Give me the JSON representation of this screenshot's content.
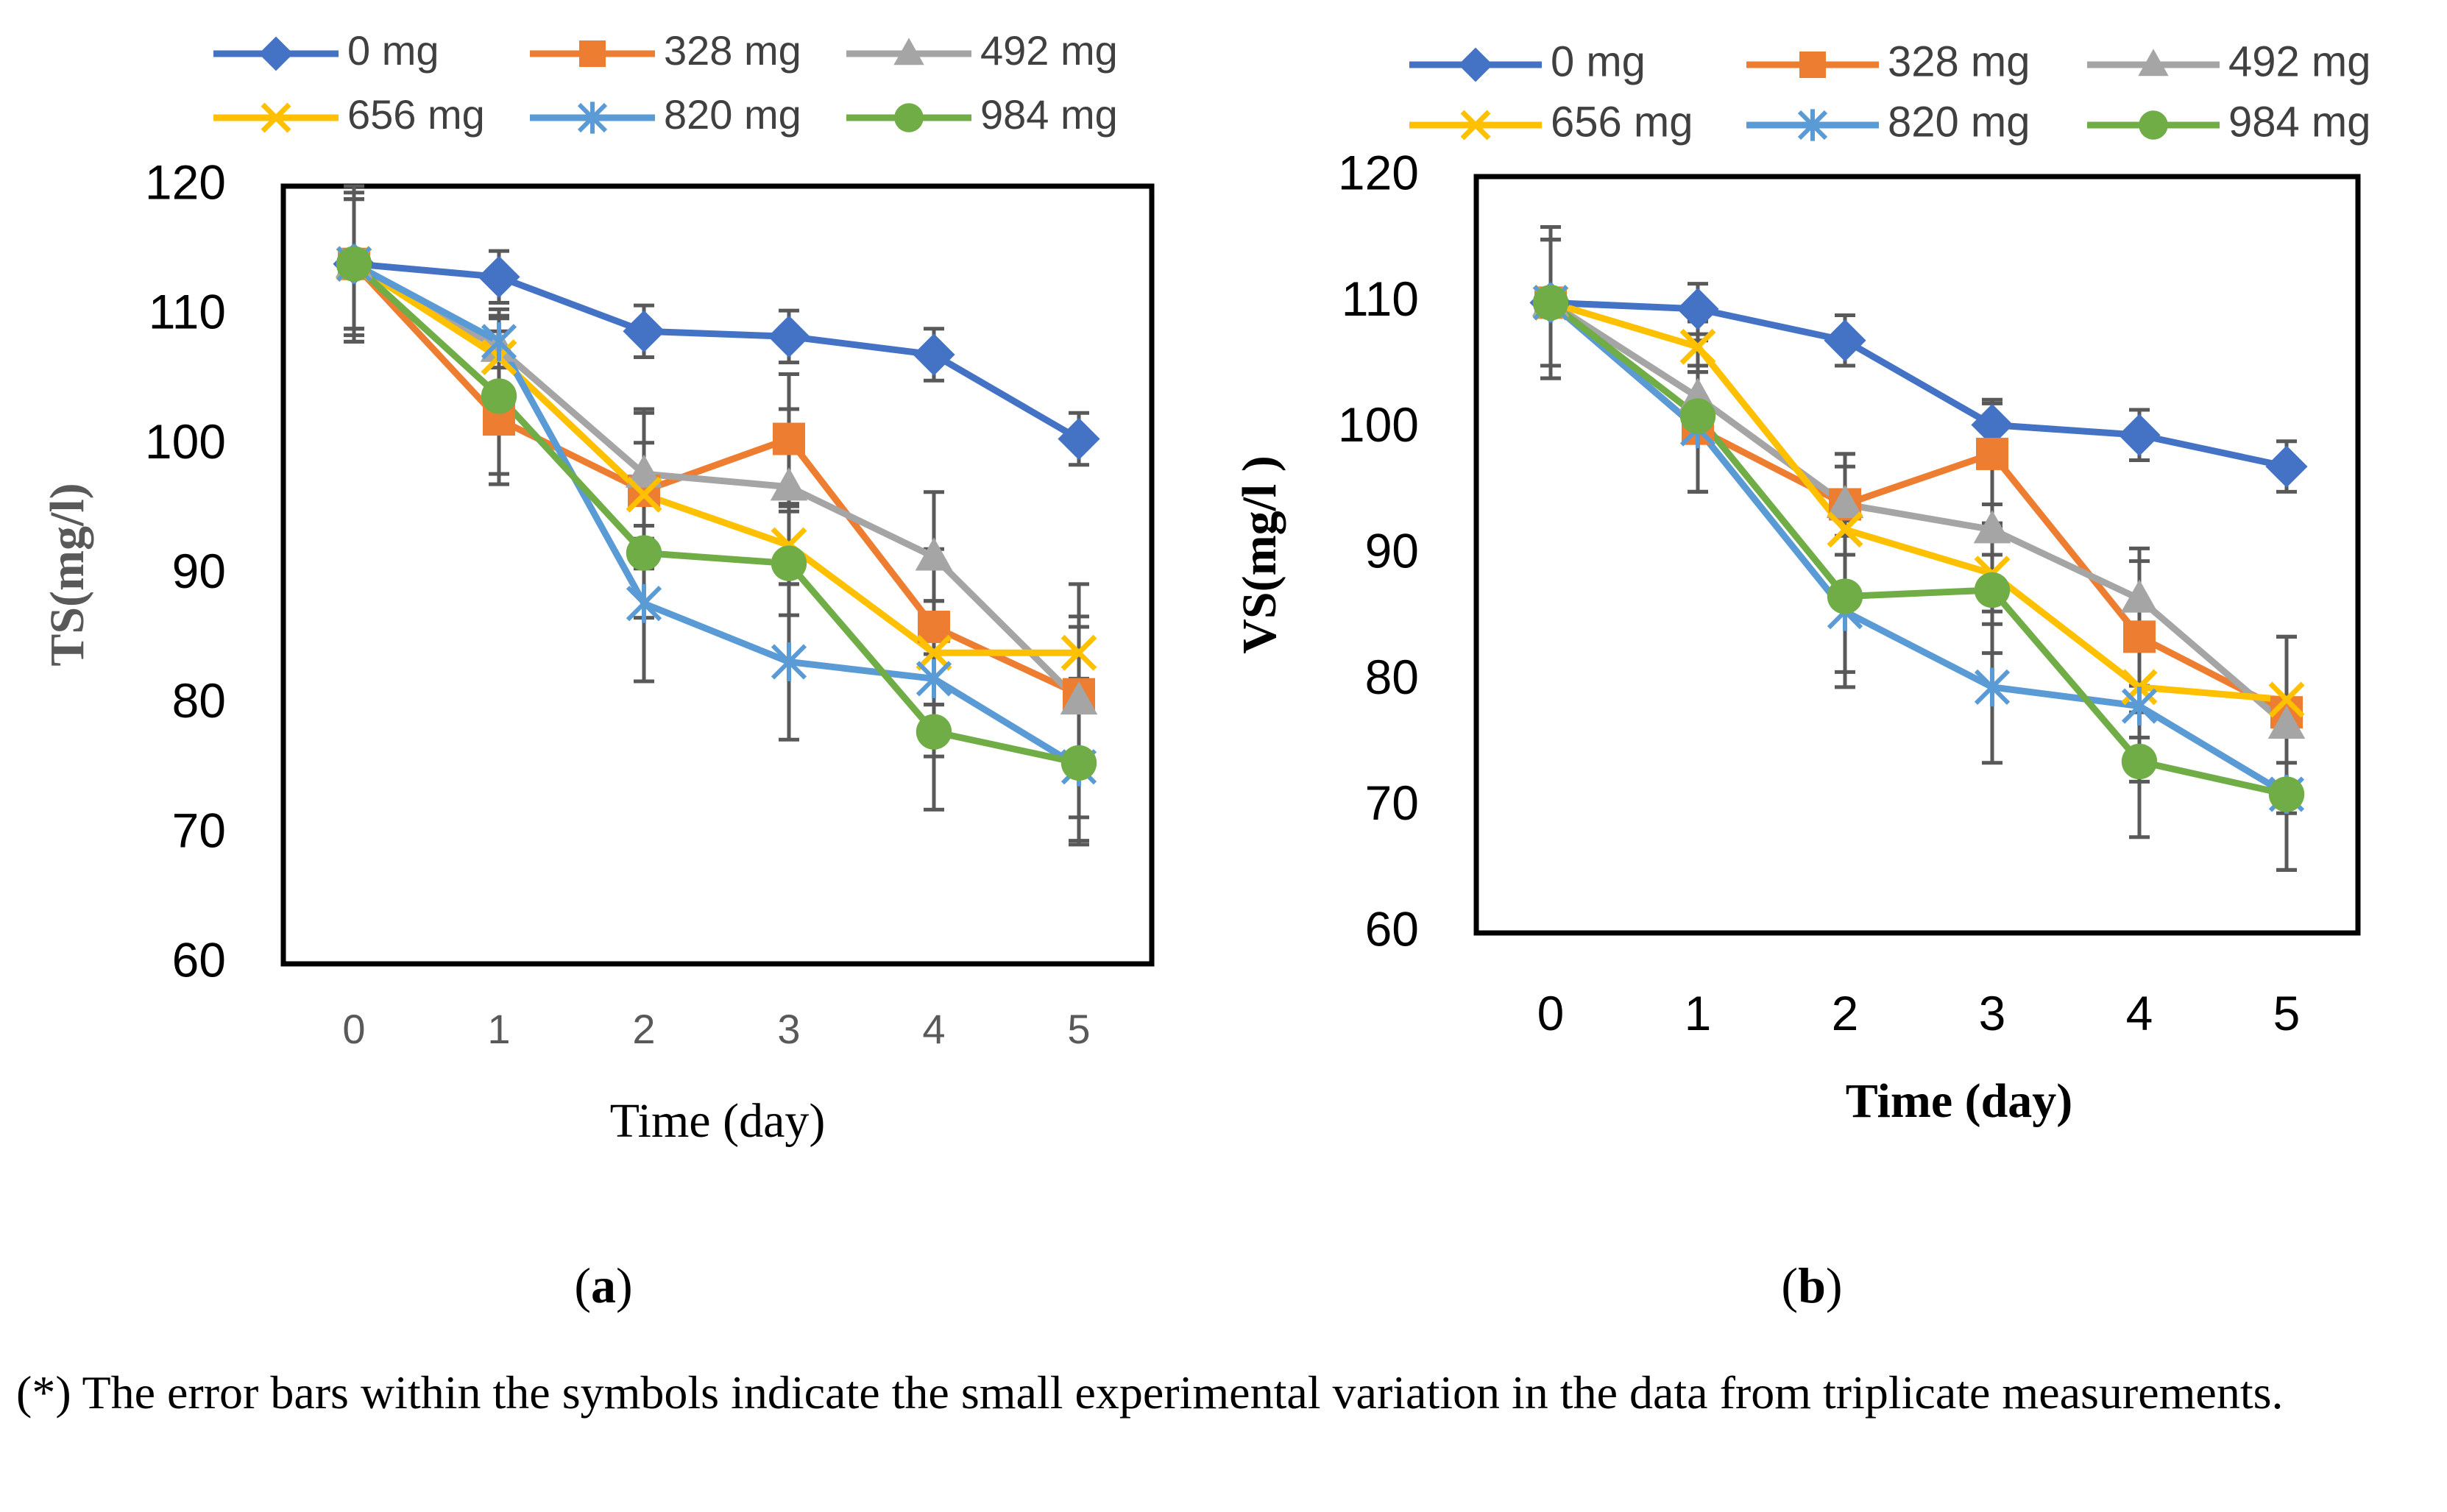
{
  "colors": {
    "0 mg": "#4472C4",
    "328 mg": "#ED7D31",
    "492 mg": "#A5A5A5",
    "656 mg": "#FFC000",
    "820 mg": "#5B9BD5",
    "984 mg": "#70AD47",
    "error_bar": "#595959",
    "frame": "#000000"
  },
  "chart_data": [
    {
      "id": "a",
      "type": "line",
      "caption": "a",
      "title": "",
      "xlabel": "Time (day)",
      "ylabel": "TS(mg/l)",
      "x": [
        0,
        1,
        2,
        3,
        4,
        5
      ],
      "xticks": [
        "0",
        "1",
        "2",
        "3",
        "4",
        "5"
      ],
      "ylim": [
        60,
        120
      ],
      "yticks": [
        "60",
        "70",
        "80",
        "90",
        "100",
        "110",
        "120"
      ],
      "grid": false,
      "legend": "top",
      "series": [
        {
          "name": "0 mg",
          "marker": "diamond",
          "values": [
            114,
            113,
            108.8,
            108.4,
            107,
            100.5
          ],
          "errors": [
            5.5,
            2,
            2,
            2,
            2,
            2
          ]
        },
        {
          "name": "328 mg",
          "marker": "square",
          "values": [
            114,
            102,
            96.5,
            100.5,
            86,
            80.8
          ],
          "errors": [
            6,
            5,
            6,
            5,
            6,
            6
          ]
        },
        {
          "name": "492 mg",
          "marker": "triangle",
          "values": [
            114,
            107.5,
            97.8,
            96.8,
            91.4,
            80.3
          ],
          "errors": [
            6,
            3,
            5,
            6,
            5,
            9
          ]
        },
        {
          "name": "656 mg",
          "marker": "x",
          "values": [
            114,
            106.8,
            96.2,
            92.3,
            84,
            84
          ],
          "errors": [
            5,
            2,
            4,
            3,
            4,
            2
          ]
        },
        {
          "name": "820 mg",
          "marker": "star",
          "values": [
            114,
            108,
            87.8,
            83.3,
            82,
            75.2
          ],
          "errors": [
            5,
            2,
            6,
            6,
            6,
            6
          ]
        },
        {
          "name": "984 mg",
          "marker": "circle",
          "values": [
            114,
            103.8,
            91.7,
            90.9,
            77.9,
            75.5
          ],
          "errors": [
            5,
            6,
            5,
            4,
            6,
            6
          ]
        }
      ]
    },
    {
      "id": "b",
      "type": "line",
      "caption": "b",
      "title": "",
      "xlabel": "Time (day)",
      "ylabel": "VS(mg/l )",
      "x": [
        0,
        1,
        2,
        3,
        4,
        5
      ],
      "xticks": [
        "0",
        "1",
        "2",
        "3",
        "4",
        "5"
      ],
      "ylim": [
        60,
        120
      ],
      "yticks": [
        "60",
        "70",
        "80",
        "90",
        "100",
        "110",
        "120"
      ],
      "grid": false,
      "legend": "top",
      "series": [
        {
          "name": "0 mg",
          "marker": "diamond",
          "values": [
            110,
            109.5,
            107,
            100.3,
            99.5,
            97
          ],
          "errors": [
            6,
            2,
            2,
            2,
            2,
            2
          ]
        },
        {
          "name": "328 mg",
          "marker": "square",
          "values": [
            110,
            100,
            94,
            98,
            83.5,
            77.5
          ],
          "errors": [
            6,
            5,
            4,
            4,
            6,
            6
          ]
        },
        {
          "name": "492 mg",
          "marker": "triangle",
          "values": [
            110,
            102.5,
            94,
            92,
            86.5,
            76.5
          ],
          "errors": [
            5,
            2,
            4,
            2,
            4,
            7
          ]
        },
        {
          "name": "656 mg",
          "marker": "x",
          "values": [
            110,
            106.5,
            92,
            88.5,
            79.5,
            78.5
          ],
          "errors": [
            5,
            2,
            5,
            4,
            4,
            5
          ]
        },
        {
          "name": "820 mg",
          "marker": "star",
          "values": [
            110,
            100,
            85.5,
            79.5,
            78,
            71
          ],
          "errors": [
            5,
            5,
            6,
            6,
            6,
            6
          ]
        },
        {
          "name": "984 mg",
          "marker": "circle",
          "values": [
            110,
            101,
            86.7,
            87.2,
            73.6,
            71
          ],
          "errors": [
            5,
            6,
            6,
            5,
            6,
            6
          ]
        }
      ]
    }
  ],
  "footnote": "(*) The error bars within the symbols indicate the small experimental variation in the data from triplicate measurements."
}
